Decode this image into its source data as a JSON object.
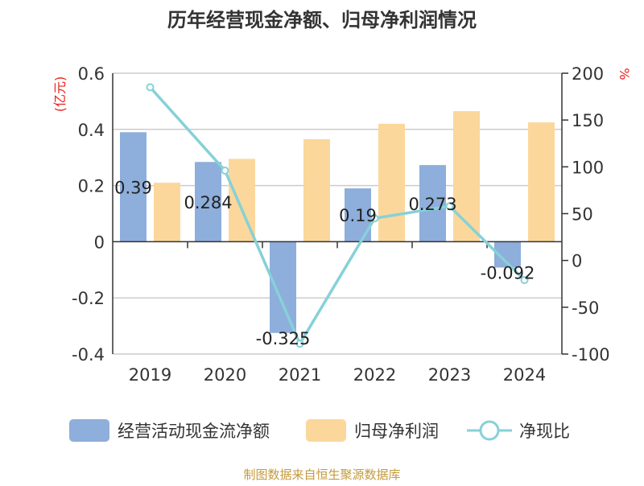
{
  "chart_data": {
    "type": "bar",
    "title": "历年经营现金净额、归母净利润情况",
    "categories": [
      "2019",
      "2020",
      "2021",
      "2022",
      "2023",
      "2024"
    ],
    "series": [
      {
        "name": "经营活动现金流净额",
        "type": "bar",
        "axis": "left",
        "values": [
          0.39,
          0.284,
          -0.325,
          0.19,
          0.273,
          -0.092
        ],
        "data_labels": [
          "0.39",
          "0.284",
          "-0.325",
          "0.19",
          "0.273",
          "-0.092"
        ]
      },
      {
        "name": "归母净利润",
        "type": "bar",
        "axis": "left",
        "values": [
          0.21,
          0.295,
          0.365,
          0.42,
          0.465,
          0.425
        ]
      },
      {
        "name": "净现比",
        "type": "line",
        "axis": "right",
        "values": [
          185,
          96,
          -89,
          45,
          58,
          -21
        ]
      }
    ],
    "y_left": {
      "label": "(亿元)",
      "ylim": [
        -0.4,
        0.6
      ],
      "ticks": [
        -0.4,
        -0.2,
        0,
        0.2,
        0.4,
        0.6
      ],
      "tick_labels": [
        "-0.4",
        "-0.2",
        "0",
        "0.2",
        "0.4",
        "0.6"
      ]
    },
    "y_right": {
      "label": "%",
      "ylim": [
        -100,
        200
      ],
      "ticks": [
        -100,
        -50,
        0,
        50,
        100,
        150,
        200
      ],
      "tick_labels": [
        "-100",
        "-50",
        "0",
        "50",
        "100",
        "150",
        "200"
      ]
    },
    "grid": true,
    "legend_position": "bottom",
    "colors": {
      "cash_flow": "#8eaedb",
      "net_profit": "#fcd79b",
      "ratio_line": "#86d1d8",
      "axis_label": "#e8201c",
      "source_text": "#c49a3c",
      "title": "#333333"
    }
  },
  "source": "制图数据来自恒生聚源数据库"
}
